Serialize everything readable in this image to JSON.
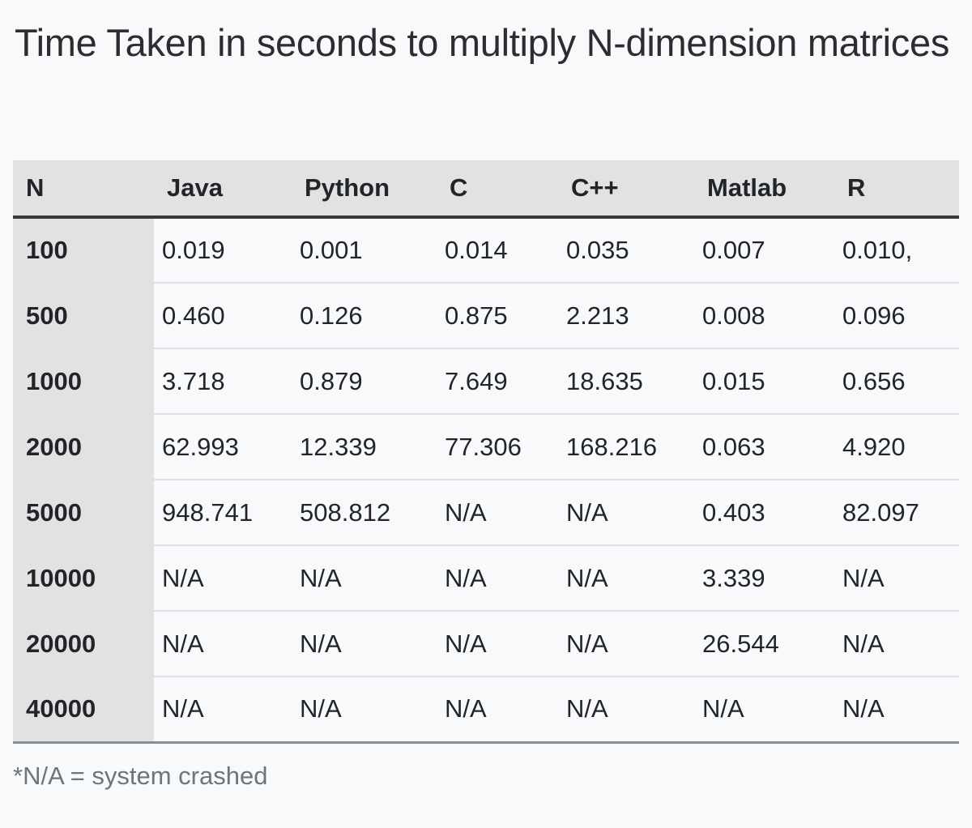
{
  "title": "Time Taken in seconds to multiply N-dimension matrices",
  "table": {
    "headers": [
      "N",
      "Java",
      "Python",
      "C",
      "C++",
      "Matlab",
      "R"
    ],
    "rows": [
      [
        "100",
        "0.019",
        "0.001",
        "0.014",
        "0.035",
        "0.007",
        "0.010,"
      ],
      [
        "500",
        "0.460",
        "0.126",
        "0.875",
        "2.213",
        "0.008",
        "0.096"
      ],
      [
        "1000",
        "3.718",
        "0.879",
        "7.649",
        "18.635",
        "0.015",
        "0.656"
      ],
      [
        "2000",
        "62.993",
        "12.339",
        "77.306",
        "168.216",
        "0.063",
        "4.920"
      ],
      [
        "5000",
        "948.741",
        "508.812",
        "N/A",
        "N/A",
        "0.403",
        "82.097"
      ],
      [
        "10000",
        "N/A",
        "N/A",
        "N/A",
        "N/A",
        "3.339",
        "N/A"
      ],
      [
        "20000",
        "N/A",
        "N/A",
        "N/A",
        "N/A",
        "26.544",
        "N/A"
      ],
      [
        "40000",
        "N/A",
        "N/A",
        "N/A",
        "N/A",
        "N/A",
        "N/A"
      ]
    ]
  },
  "footnote": "*N/A = system crashed"
}
